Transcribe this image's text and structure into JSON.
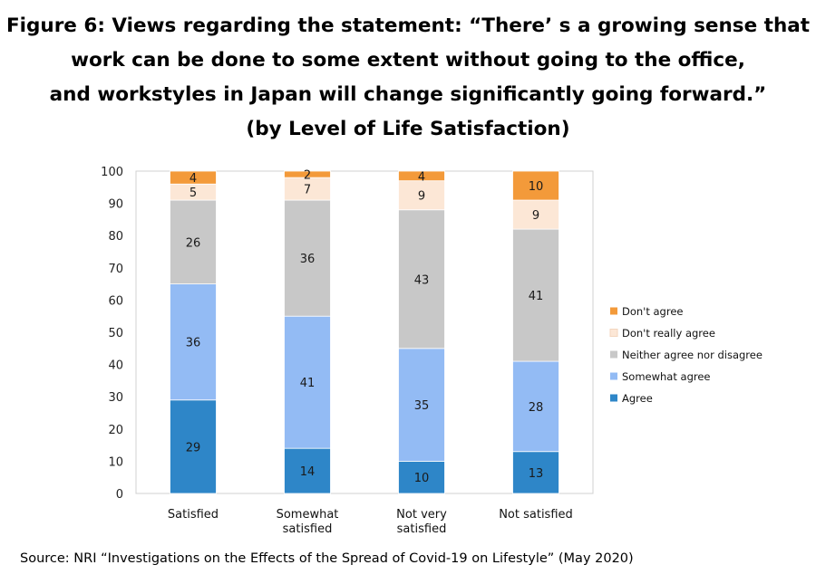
{
  "chart_data": {
    "type": "bar",
    "stacked": true,
    "title_lines": [
      "Figure 6: Views regarding the statement: “There’ s a growing sense that",
      "work can be done to some extent without going to the office,",
      "and workstyles in Japan will change significantly going forward.”",
      "(by Level of Life Satisfaction)"
    ],
    "categories": [
      [
        "Satisfied"
      ],
      [
        "Somewhat",
        "satisfied"
      ],
      [
        "Not very",
        "satisfied"
      ],
      [
        "Not satisfied"
      ]
    ],
    "ylim": [
      0,
      100
    ],
    "yticks": [
      0,
      10,
      20,
      30,
      40,
      50,
      60,
      70,
      80,
      90,
      100
    ],
    "legend_position": "right",
    "grid": false,
    "series": [
      {
        "name": "Agree",
        "color": "#2e86c8",
        "values": [
          29,
          14,
          10,
          13
        ],
        "labels": [
          "29",
          "14",
          "10",
          "13"
        ]
      },
      {
        "name": "Somewhat agree",
        "color": "#93bbf4",
        "values": [
          36,
          41,
          35,
          28
        ],
        "labels": [
          "36",
          "41",
          "35",
          "28"
        ]
      },
      {
        "name": "Neither agree nor disagree",
        "color": "#c8c8c8",
        "values": [
          26,
          36,
          43,
          41
        ],
        "labels": [
          "26",
          "36",
          "43",
          "41"
        ]
      },
      {
        "name": "Don't really agree",
        "color": "#fce7d6",
        "values": [
          5,
          7,
          9,
          9
        ],
        "labels": [
          "5",
          "7",
          "9",
          "9"
        ]
      },
      {
        "name": "Don't agree",
        "color": "#f39a3a",
        "values": [
          4,
          2,
          4,
          10
        ],
        "labels": [
          "4",
          "2",
          "4",
          "10"
        ]
      }
    ]
  },
  "source": "Source: NRI “Investigations on the Effects of the Spread of Covid-19 on Lifestyle” (May 2020)"
}
